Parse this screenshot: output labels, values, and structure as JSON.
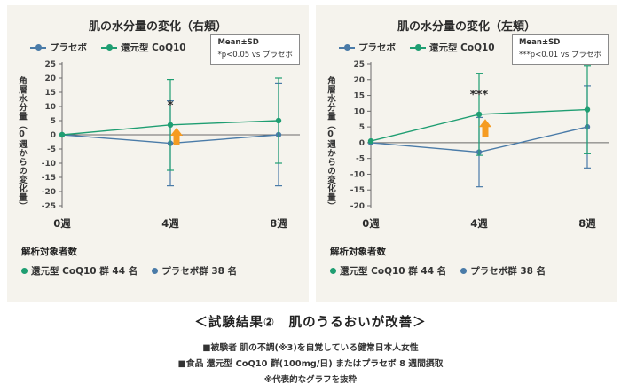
{
  "panels": [
    {
      "stats_box": {
        "line1": "Mean±SD",
        "line2": "*p<0.05 vs プラセボ"
      },
      "analysis": {
        "label": "解析対象者数",
        "coq10": "還元型 CoQ10 群 44 名",
        "placebo": "プラセボ群 38 名"
      }
    },
    {
      "stats_box": {
        "line1": "Mean±SD",
        "line2": "***p<0.01 vs プラセボ"
      },
      "analysis": {
        "label": "解析対象者数",
        "coq10": "還元型 CoQ10 群 44 名",
        "placebo": "プラセボ群 38 名"
      }
    }
  ],
  "caption": {
    "title": "＜試験結果②　肌のうるおいが改善＞",
    "lines": [
      "■被験者 肌の不調(※3)を自覚している健常日本人女性",
      "■食品 還元型 CoQ10 群(100mg/日) またはプラセボ 8 週間摂取",
      "※代表的なグラフを抜粋"
    ]
  },
  "colors": {
    "placebo_blue": "#4a7ba8",
    "coq10_green": "#1f9e72",
    "arrow_orange": "#f59b22",
    "panel_background": "#f5f3ed"
  },
  "chart_data": [
    {
      "type": "line",
      "title": "肌の水分量の変化（右頬）",
      "x": [
        "0週",
        "4週",
        "8週"
      ],
      "ylabel": "角層水分量（0週からの変化量）",
      "ylim": [
        -25,
        25
      ],
      "ytick_step": 5,
      "series": [
        {
          "name": "プラセボ",
          "color": "#4a7ba8",
          "values": [
            0,
            -3,
            0
          ],
          "sd": [
            0,
            15,
            18
          ]
        },
        {
          "name": "還元型 CoQ10",
          "color": "#1f9e72",
          "values": [
            0,
            3.5,
            5
          ],
          "sd": [
            0,
            16,
            15
          ]
        }
      ],
      "annotation": {
        "text": "*",
        "x_index": 1,
        "y": 9
      },
      "arrow": {
        "x_index": 1,
        "tip_y": 2.5,
        "color": "#f59b22"
      }
    },
    {
      "type": "line",
      "title": "肌の水分量の変化（左頬）",
      "x": [
        "0週",
        "4週",
        "8週"
      ],
      "ylabel": "角層水分量（0週からの変化量）",
      "ylim": [
        -20,
        25
      ],
      "ytick_step": 5,
      "series": [
        {
          "name": "プラセボ",
          "color": "#4a7ba8",
          "values": [
            0,
            -3,
            5
          ],
          "sd": [
            0,
            11,
            13
          ]
        },
        {
          "name": "還元型 CoQ10",
          "color": "#1f9e72",
          "values": [
            0.5,
            9,
            10.5
          ],
          "sd": [
            0,
            13,
            14
          ]
        }
      ],
      "annotation": {
        "text": "***",
        "x_index": 1,
        "y": 14
      },
      "arrow": {
        "x_index": 1,
        "tip_y": 7.5,
        "color": "#f59b22"
      }
    }
  ]
}
